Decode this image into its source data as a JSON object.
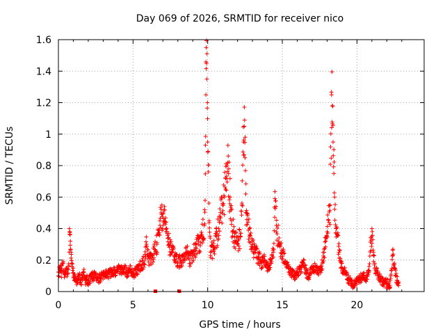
{
  "chart_data": {
    "type": "scatter",
    "title": "Day 069 of 2026, SRMTID for receiver nico",
    "xlabel": "GPS time / hours",
    "ylabel": "SRMTID / TECUs",
    "xlim": [
      0,
      24.5
    ],
    "ylim": [
      0,
      1.6
    ],
    "xticks": [
      0,
      5,
      10,
      15,
      20
    ],
    "xtick_labels": [
      "0",
      "5",
      "10",
      "15",
      "20"
    ],
    "yticks": [
      0,
      0.2,
      0.4,
      0.6,
      0.8,
      1.0,
      1.2,
      1.4,
      1.6
    ],
    "ytick_labels": [
      "0",
      "0.2",
      "0.4",
      "0.6",
      "0.8",
      "1",
      "1.2",
      "1.4",
      "1.6"
    ],
    "grid": true,
    "marker": "plus",
    "color": "#ff0000",
    "series": [
      {
        "name": "SRMTID",
        "points": [
          [
            0.0,
            0.1
          ],
          [
            0.1,
            0.15
          ],
          [
            0.2,
            0.12
          ],
          [
            0.3,
            0.18
          ],
          [
            0.4,
            0.09
          ],
          [
            0.5,
            0.14
          ],
          [
            0.6,
            0.11
          ],
          [
            0.7,
            0.16
          ],
          [
            0.75,
            0.38
          ],
          [
            0.78,
            0.36
          ],
          [
            0.8,
            0.32
          ],
          [
            0.85,
            0.25
          ],
          [
            0.9,
            0.18
          ],
          [
            1.0,
            0.12
          ],
          [
            1.1,
            0.09
          ],
          [
            1.2,
            0.07
          ],
          [
            1.3,
            0.08
          ],
          [
            1.4,
            0.1
          ],
          [
            1.5,
            0.06
          ],
          [
            1.6,
            0.09
          ],
          [
            1.7,
            0.12
          ],
          [
            1.8,
            0.07
          ],
          [
            1.9,
            0.08
          ],
          [
            2.0,
            0.06
          ],
          [
            2.2,
            0.09
          ],
          [
            2.4,
            0.1
          ],
          [
            2.6,
            0.08
          ],
          [
            2.8,
            0.09
          ],
          [
            3.0,
            0.1
          ],
          [
            3.2,
            0.12
          ],
          [
            3.4,
            0.11
          ],
          [
            3.6,
            0.13
          ],
          [
            3.8,
            0.12
          ],
          [
            4.0,
            0.14
          ],
          [
            4.2,
            0.13
          ],
          [
            4.4,
            0.15
          ],
          [
            4.6,
            0.12
          ],
          [
            4.8,
            0.14
          ],
          [
            5.0,
            0.11
          ],
          [
            5.2,
            0.13
          ],
          [
            5.4,
            0.15
          ],
          [
            5.6,
            0.17
          ],
          [
            5.8,
            0.2
          ],
          [
            5.9,
            0.3
          ],
          [
            6.0,
            0.22
          ],
          [
            6.2,
            0.2
          ],
          [
            6.4,
            0.24
          ],
          [
            6.6,
            0.3
          ],
          [
            6.8,
            0.45
          ],
          [
            7.0,
            0.5
          ],
          [
            7.1,
            0.54
          ],
          [
            7.2,
            0.38
          ],
          [
            7.4,
            0.3
          ],
          [
            7.6,
            0.25
          ],
          [
            7.8,
            0.22
          ],
          [
            8.0,
            0.18
          ],
          [
            8.2,
            0.2
          ],
          [
            8.4,
            0.22
          ],
          [
            8.6,
            0.25
          ],
          [
            8.8,
            0.2
          ],
          [
            9.0,
            0.23
          ],
          [
            9.2,
            0.28
          ],
          [
            9.4,
            0.3
          ],
          [
            9.6,
            0.35
          ],
          [
            9.8,
            0.43
          ],
          [
            9.85,
            0.93
          ],
          [
            9.88,
            1.25
          ],
          [
            9.9,
            1.55
          ],
          [
            9.92,
            1.45
          ],
          [
            9.95,
            1.35
          ],
          [
            9.98,
            1.2
          ],
          [
            10.0,
            0.95
          ],
          [
            10.05,
            0.76
          ],
          [
            10.1,
            0.45
          ],
          [
            10.2,
            0.25
          ],
          [
            10.4,
            0.28
          ],
          [
            10.6,
            0.35
          ],
          [
            10.8,
            0.45
          ],
          [
            11.0,
            0.55
          ],
          [
            11.2,
            0.65
          ],
          [
            11.3,
            0.8
          ],
          [
            11.4,
            0.75
          ],
          [
            11.5,
            0.6
          ],
          [
            11.6,
            0.45
          ],
          [
            11.8,
            0.35
          ],
          [
            12.0,
            0.3
          ],
          [
            12.2,
            0.35
          ],
          [
            12.3,
            0.55
          ],
          [
            12.4,
            0.95
          ],
          [
            12.45,
            1.05
          ],
          [
            12.5,
            0.85
          ],
          [
            12.55,
            0.62
          ],
          [
            12.6,
            0.5
          ],
          [
            12.8,
            0.35
          ],
          [
            13.0,
            0.28
          ],
          [
            13.2,
            0.25
          ],
          [
            13.4,
            0.22
          ],
          [
            13.6,
            0.18
          ],
          [
            13.8,
            0.2
          ],
          [
            14.0,
            0.15
          ],
          [
            14.2,
            0.18
          ],
          [
            14.4,
            0.25
          ],
          [
            14.5,
            0.59
          ],
          [
            14.6,
            0.42
          ],
          [
            14.8,
            0.3
          ],
          [
            15.0,
            0.25
          ],
          [
            15.2,
            0.18
          ],
          [
            15.4,
            0.15
          ],
          [
            15.6,
            0.12
          ],
          [
            15.8,
            0.1
          ],
          [
            16.0,
            0.12
          ],
          [
            16.2,
            0.14
          ],
          [
            16.4,
            0.18
          ],
          [
            16.6,
            0.12
          ],
          [
            16.8,
            0.1
          ],
          [
            17.0,
            0.14
          ],
          [
            17.2,
            0.16
          ],
          [
            17.4,
            0.12
          ],
          [
            17.6,
            0.14
          ],
          [
            17.8,
            0.25
          ],
          [
            18.0,
            0.38
          ],
          [
            18.2,
            0.55
          ],
          [
            18.3,
            1.25
          ],
          [
            18.35,
            1.18
          ],
          [
            18.4,
            0.95
          ],
          [
            18.45,
            0.75
          ],
          [
            18.5,
            0.6
          ],
          [
            18.6,
            0.4
          ],
          [
            18.8,
            0.25
          ],
          [
            19.0,
            0.15
          ],
          [
            19.2,
            0.12
          ],
          [
            19.4,
            0.08
          ],
          [
            19.6,
            0.05
          ],
          [
            19.8,
            0.04
          ],
          [
            20.0,
            0.06
          ],
          [
            20.2,
            0.08
          ],
          [
            20.4,
            0.1
          ],
          [
            20.6,
            0.08
          ],
          [
            20.8,
            0.12
          ],
          [
            21.0,
            0.4
          ],
          [
            21.1,
            0.25
          ],
          [
            21.2,
            0.15
          ],
          [
            21.4,
            0.1
          ],
          [
            21.6,
            0.08
          ],
          [
            21.8,
            0.06
          ],
          [
            22.0,
            0.05
          ],
          [
            22.2,
            0.04
          ],
          [
            22.4,
            0.23
          ],
          [
            22.5,
            0.18
          ],
          [
            22.6,
            0.1
          ],
          [
            22.7,
            0.07
          ],
          [
            22.8,
            0.06
          ]
        ]
      }
    ]
  }
}
